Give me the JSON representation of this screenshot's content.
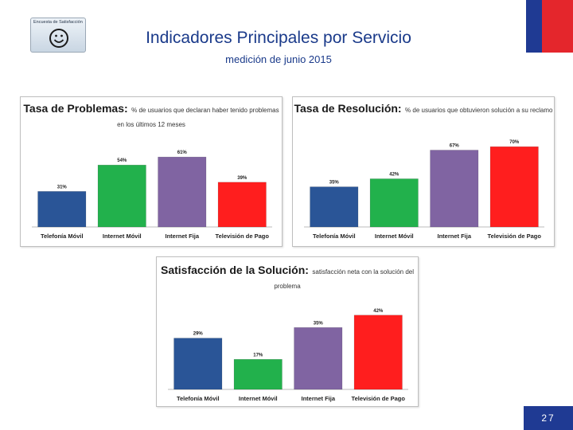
{
  "header": {
    "logo_text": "Encuesta de Satisfacción",
    "title": "Indicadores Principales por Servicio",
    "subtitle": "medición de junio 2015",
    "flag_colors": [
      "#1f3a93",
      "#e4262c"
    ]
  },
  "chart_data": [
    {
      "type": "bar",
      "title": "Tasa de Problemas:",
      "description": "% de usuarios que declaran haber tenido problemas en los últimos 12 meses",
      "categories": [
        "Telefonía Móvil",
        "Internet Móvil",
        "Internet Fija",
        "Televisión de Pago"
      ],
      "values": [
        31,
        54,
        61,
        39
      ],
      "value_labels": [
        "31%",
        "54%",
        "61%",
        "39%"
      ],
      "colors": [
        "#2a5597",
        "#22b14c",
        "#8064a2",
        "#ff1e1e"
      ],
      "ylim": [
        0,
        75
      ],
      "xlabel": "",
      "ylabel": ""
    },
    {
      "type": "bar",
      "title": "Tasa de Resolución:",
      "description": "% de usuarios que obtuvieron solución a su reclamo",
      "categories": [
        "Telefonía Móvil",
        "Internet Móvil",
        "Internet Fija",
        "Televisión de Pago"
      ],
      "values": [
        35,
        42,
        67,
        70
      ],
      "value_labels": [
        "35%",
        "42%",
        "67%",
        "70%"
      ],
      "colors": [
        "#2a5597",
        "#22b14c",
        "#8064a2",
        "#ff1e1e"
      ],
      "ylim": [
        0,
        75
      ],
      "xlabel": "",
      "ylabel": ""
    },
    {
      "type": "bar",
      "title": "Satisfacción de la Solución:",
      "description": "satisfacción neta con la solución del problema",
      "categories": [
        "Telefonía Móvil",
        "Internet Móvil",
        "Internet Fija",
        "Televisión de Pago"
      ],
      "values": [
        29,
        17,
        35,
        42
      ],
      "value_labels": [
        "29%",
        "17%",
        "35%",
        "42%"
      ],
      "colors": [
        "#2a5597",
        "#22b14c",
        "#8064a2",
        "#ff1e1e"
      ],
      "ylim": [
        0,
        50
      ],
      "xlabel": "",
      "ylabel": ""
    }
  ],
  "footer": {
    "page_number": "27"
  }
}
